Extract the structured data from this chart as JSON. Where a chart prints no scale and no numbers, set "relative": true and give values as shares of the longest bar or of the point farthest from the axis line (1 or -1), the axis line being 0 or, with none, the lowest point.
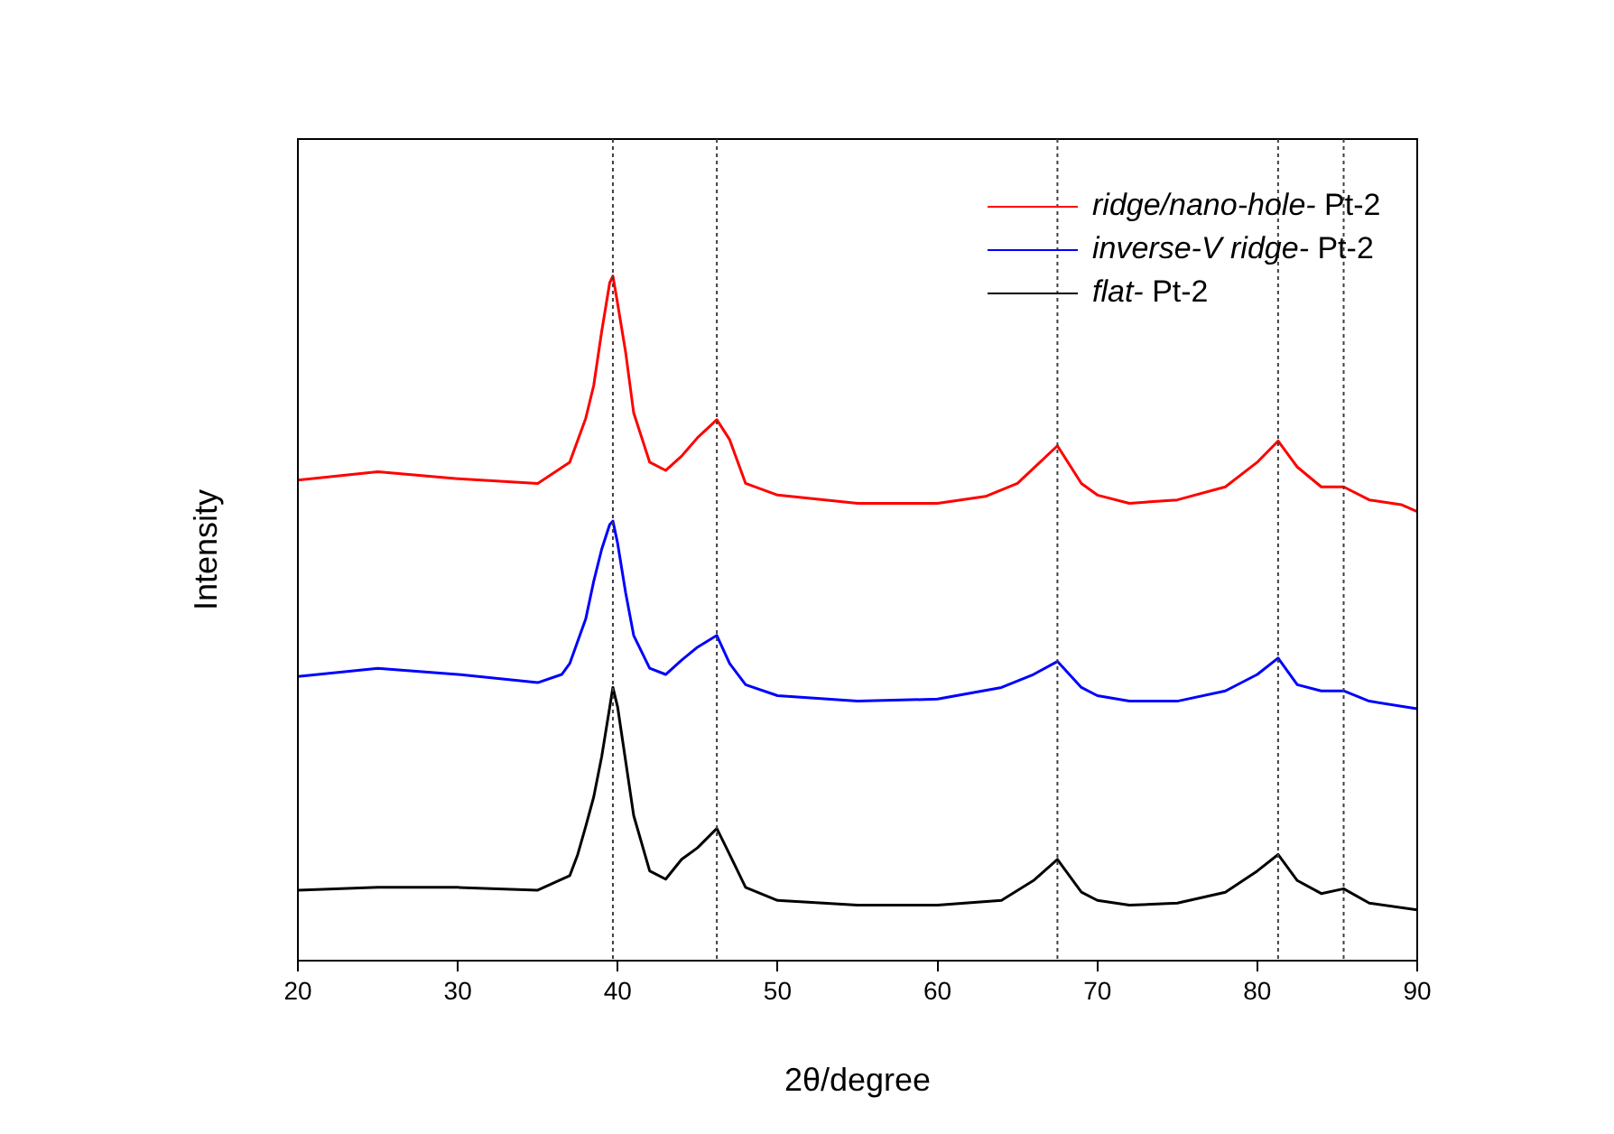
{
  "chart_data": {
    "type": "line",
    "relative": true,
    "xlabel": "2θ/degree",
    "ylabel": "Intensity",
    "xlim": [
      20,
      90
    ],
    "xticks": [
      20,
      30,
      40,
      50,
      60,
      70,
      80,
      90
    ],
    "grid": false,
    "legend": "top right",
    "marker": "none",
    "line_style": "solid",
    "ref_lines": [
      {
        "axis": "x",
        "value": 39.7,
        "color": "#404040",
        "line_style": "dotted"
      },
      {
        "axis": "x",
        "value": 46.2,
        "color": "#404040",
        "line_style": "dotted"
      },
      {
        "axis": "x",
        "value": 67.5,
        "color": "#404040",
        "line_style": "dotted"
      },
      {
        "axis": "x",
        "value": 81.3,
        "color": "#404040",
        "line_style": "dotted"
      },
      {
        "axis": "x",
        "value": 85.4,
        "color": "#404040",
        "line_style": "dotted"
      }
    ],
    "series": [
      {
        "name": "ridge/nano-hole- Pt-2",
        "color": "#ff0000",
        "x": [
          20,
          25,
          30,
          35,
          37,
          38,
          38.5,
          39,
          39.5,
          39.7,
          40,
          40.5,
          41,
          42,
          43,
          44,
          45,
          46.2,
          47,
          48,
          50,
          55,
          60,
          63,
          65,
          67.5,
          69,
          70,
          72,
          75,
          78,
          80,
          81.3,
          82.5,
          84,
          85.4,
          87,
          89,
          90
        ],
        "values": [
          0.702,
          0.714,
          0.704,
          0.697,
          0.728,
          0.792,
          0.84,
          0.919,
          0.99,
          1.0,
          0.959,
          0.888,
          0.8,
          0.728,
          0.716,
          0.737,
          0.764,
          0.79,
          0.761,
          0.697,
          0.68,
          0.668,
          0.668,
          0.678,
          0.697,
          0.752,
          0.697,
          0.68,
          0.668,
          0.673,
          0.692,
          0.728,
          0.759,
          0.721,
          0.692,
          0.692,
          0.673,
          0.666,
          0.656
        ]
      },
      {
        "name": "inverse-V ridge- Pt-2",
        "color": "#0000ff",
        "x": [
          20,
          25,
          30,
          35,
          36.5,
          37,
          38,
          38.5,
          39,
          39.5,
          39.7,
          40,
          40.5,
          41,
          42,
          43,
          44,
          45,
          46.2,
          47,
          48,
          50,
          55,
          60,
          64,
          66,
          67.5,
          69,
          70,
          72,
          75,
          78,
          80,
          81.3,
          82.5,
          84,
          85.4,
          87,
          90
        ],
        "values": [
          0.415,
          0.427,
          0.418,
          0.406,
          0.418,
          0.434,
          0.499,
          0.554,
          0.601,
          0.637,
          0.642,
          0.609,
          0.537,
          0.475,
          0.427,
          0.418,
          0.439,
          0.458,
          0.475,
          0.434,
          0.403,
          0.387,
          0.379,
          0.382,
          0.399,
          0.418,
          0.437,
          0.399,
          0.387,
          0.379,
          0.379,
          0.394,
          0.418,
          0.442,
          0.403,
          0.394,
          0.394,
          0.379,
          0.368
        ]
      },
      {
        "name": "flat- Pt-2",
        "color": "#000000",
        "x": [
          20,
          25,
          30,
          35,
          37,
          37.5,
          38,
          38.5,
          39,
          39.5,
          39.7,
          40,
          40.5,
          41,
          42,
          43,
          44,
          45,
          46.2,
          47,
          48,
          50,
          55,
          60,
          64,
          66,
          67.5,
          69,
          70,
          72,
          75,
          78,
          80,
          81.3,
          82.5,
          84,
          85.4,
          87,
          90
        ],
        "values": [
          0.103,
          0.107,
          0.107,
          0.103,
          0.124,
          0.155,
          0.196,
          0.239,
          0.298,
          0.37,
          0.399,
          0.37,
          0.291,
          0.212,
          0.131,
          0.119,
          0.148,
          0.165,
          0.193,
          0.155,
          0.107,
          0.088,
          0.081,
          0.081,
          0.088,
          0.117,
          0.148,
          0.1,
          0.088,
          0.081,
          0.084,
          0.1,
          0.131,
          0.155,
          0.117,
          0.098,
          0.105,
          0.084,
          0.074
        ]
      }
    ]
  }
}
